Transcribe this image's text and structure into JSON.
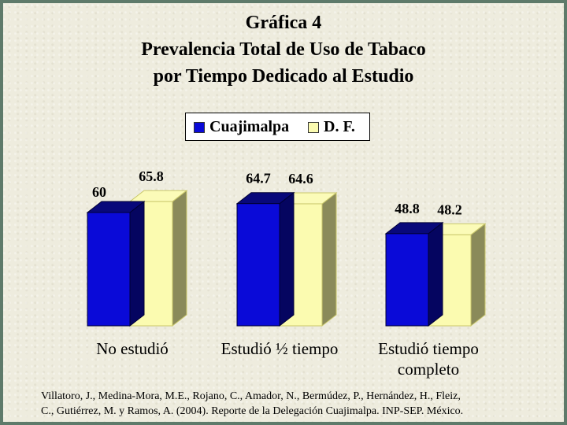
{
  "page": {
    "title_lines": [
      "Gráfica 4",
      "Prevalencia Total de Uso de Tabaco",
      "por Tiempo Dedicado al Estudio"
    ],
    "citation_lines": [
      "Villatoro, J., Medina-Mora, M.E., Rojano, C., Amador, N., Bermúdez, P., Hernández, H., Fleiz,",
      "C., Gutiérrez, M. y Ramos, A. (2004). Reporte de la Delegación Cuajimalpa. INP-SEP. México."
    ]
  },
  "colors": {
    "cuajimalpa": "#0a0ad8",
    "df": "#fbfbb0",
    "df_side": "#8a8a5a",
    "frame": "#5e7a6a",
    "background": "#eeecde"
  },
  "chart_data": {
    "type": "bar",
    "title": "Gráfica 4 Prevalencia Total de Uso de Tabaco por Tiempo Dedicado al Estudio",
    "categories": [
      "No estudió",
      "Estudió ½ tiempo",
      "Estudió tiempo completo"
    ],
    "series": [
      {
        "name": "Cuajimalpa",
        "values": [
          60,
          64.7,
          48.8
        ]
      },
      {
        "name": "D. F.",
        "values": [
          65.8,
          64.6,
          48.2
        ]
      }
    ],
    "data_labels": [
      [
        "60",
        "64.7",
        "48.8"
      ],
      [
        "65.8",
        "64.6",
        "48.2"
      ]
    ],
    "three_d": true,
    "legend": "top-center",
    "grid": false,
    "ylim": [
      0,
      70
    ]
  }
}
